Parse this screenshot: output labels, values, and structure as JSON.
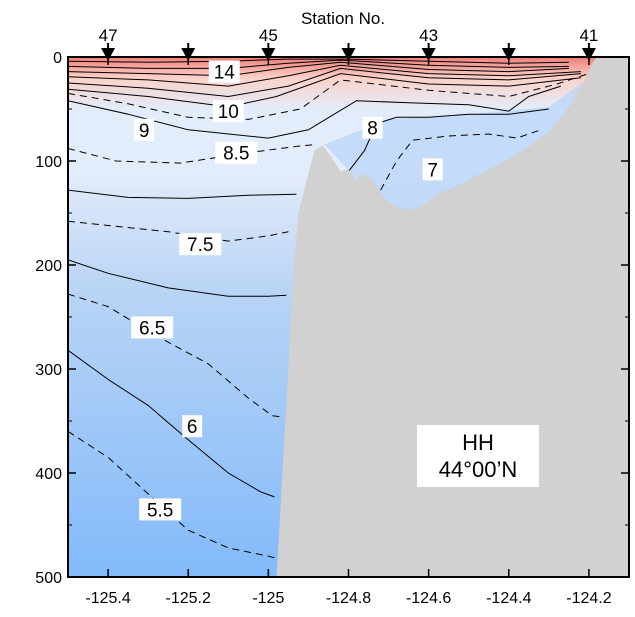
{
  "chart_data": {
    "type": "contour-section",
    "top_axis_title": "Station No.",
    "station_labels": [
      {
        "name": "47",
        "lon": -125.4
      },
      {
        "name": "45",
        "lon": -125.0
      },
      {
        "name": "43",
        "lon": -124.6
      },
      {
        "name": "41",
        "lon": -124.2
      }
    ],
    "station_markers_lon": [
      -125.4,
      -125.2,
      -125.0,
      -124.8,
      -124.6,
      -124.4,
      -124.2
    ],
    "x_ticks": [
      -125.4,
      -125.2,
      -125.0,
      -124.8,
      -124.6,
      -124.4,
      -124.2
    ],
    "x_tick_labels": [
      "-125.4",
      "-125.2",
      "-125",
      "-124.8",
      "-124.6",
      "-124.4",
      "-124.2"
    ],
    "y_ticks": [
      0,
      100,
      200,
      300,
      400,
      500
    ],
    "y_tick_labels": [
      "0",
      "100",
      "200",
      "300",
      "400",
      "500"
    ],
    "xlim": [
      -125.5,
      -124.1
    ],
    "ylim": [
      0,
      500
    ],
    "y_inverted": true,
    "annotation_lines": [
      "HH",
      "44°00’N"
    ],
    "contour_labels": [
      {
        "text": "14",
        "lon": -125.11,
        "depth": 14
      },
      {
        "text": "10",
        "lon": -125.1,
        "depth": 52
      },
      {
        "text": "9",
        "lon": -125.31,
        "depth": 70
      },
      {
        "text": "8.5",
        "lon": -125.08,
        "depth": 92
      },
      {
        "text": "8",
        "lon": -124.74,
        "depth": 68
      },
      {
        "text": "7",
        "lon": -124.59,
        "depth": 108
      },
      {
        "text": "7.5",
        "lon": -125.17,
        "depth": 180
      },
      {
        "text": "6.5",
        "lon": -125.29,
        "depth": 260
      },
      {
        "text": "6",
        "lon": -125.19,
        "depth": 355
      },
      {
        "text": "5.5",
        "lon": -125.27,
        "depth": 435
      }
    ],
    "bathymetry": [
      [
        -124.98,
        500
      ],
      [
        -124.975,
        470
      ],
      [
        -124.965,
        400
      ],
      [
        -124.95,
        300
      ],
      [
        -124.94,
        220
      ],
      [
        -124.925,
        150
      ],
      [
        -124.905,
        120
      ],
      [
        -124.885,
        90
      ],
      [
        -124.865,
        85
      ],
      [
        -124.845,
        95
      ],
      [
        -124.82,
        110
      ],
      [
        -124.8,
        108
      ],
      [
        -124.78,
        118
      ],
      [
        -124.76,
        112
      ],
      [
        -124.74,
        118
      ],
      [
        -124.72,
        130
      ],
      [
        -124.7,
        140
      ],
      [
        -124.67,
        146
      ],
      [
        -124.64,
        147
      ],
      [
        -124.61,
        142
      ],
      [
        -124.58,
        132
      ],
      [
        -124.54,
        126
      ],
      [
        -124.5,
        118
      ],
      [
        -124.45,
        108
      ],
      [
        -124.4,
        98
      ],
      [
        -124.35,
        86
      ],
      [
        -124.3,
        72
      ],
      [
        -124.25,
        48
      ],
      [
        -124.21,
        22
      ],
      [
        -124.19,
        5
      ],
      [
        -124.18,
        0
      ],
      [
        -124.1,
        0
      ],
      [
        -124.1,
        500
      ]
    ],
    "isotherms": [
      {
        "level": 13,
        "style": "solid",
        "points": [
          [
            -125.5,
            4
          ],
          [
            -125.3,
            5
          ],
          [
            -125.1,
            4
          ],
          [
            -124.95,
            2
          ],
          [
            -124.8,
            2
          ],
          [
            -124.6,
            4
          ],
          [
            -124.4,
            6
          ],
          [
            -124.25,
            5
          ]
        ]
      },
      {
        "level": 12,
        "style": "solid",
        "points": [
          [
            -125.5,
            9
          ],
          [
            -125.3,
            11
          ],
          [
            -125.1,
            11
          ],
          [
            -124.95,
            6
          ],
          [
            -124.82,
            3
          ],
          [
            -124.6,
            8
          ],
          [
            -124.4,
            10
          ],
          [
            -124.25,
            9
          ]
        ]
      },
      {
        "level": 11.5,
        "style": "solid",
        "points": [
          [
            -125.5,
            14
          ],
          [
            -125.3,
            16
          ],
          [
            -125.1,
            18
          ],
          [
            -124.95,
            10
          ],
          [
            -124.82,
            5
          ],
          [
            -124.6,
            12
          ],
          [
            -124.4,
            14
          ],
          [
            -124.25,
            11
          ]
        ]
      },
      {
        "level": 11,
        "style": "solid",
        "points": [
          [
            -125.5,
            19
          ],
          [
            -125.3,
            22
          ],
          [
            -125.1,
            28
          ],
          [
            -124.95,
            18
          ],
          [
            -124.82,
            8
          ],
          [
            -124.6,
            16
          ],
          [
            -124.4,
            18
          ],
          [
            -124.22,
            14
          ]
        ]
      },
      {
        "level": 10.5,
        "style": "solid",
        "points": [
          [
            -125.5,
            25
          ],
          [
            -125.3,
            30
          ],
          [
            -125.1,
            38
          ],
          [
            -124.95,
            28
          ],
          [
            -124.82,
            11
          ],
          [
            -124.6,
            20
          ],
          [
            -124.4,
            22
          ],
          [
            -124.22,
            16
          ]
        ]
      },
      {
        "level": 10,
        "style": "solid",
        "points": [
          [
            -125.5,
            31
          ],
          [
            -125.3,
            38
          ],
          [
            -125.1,
            48
          ],
          [
            -124.98,
            38
          ],
          [
            -124.82,
            16
          ],
          [
            -124.6,
            26
          ],
          [
            -124.4,
            28
          ],
          [
            -124.22,
            20
          ]
        ]
      },
      {
        "level": 9.5,
        "style": "dashed",
        "points": [
          [
            -125.5,
            35
          ],
          [
            -125.35,
            45
          ],
          [
            -125.2,
            58
          ],
          [
            -125.05,
            60
          ],
          [
            -124.92,
            50
          ],
          [
            -124.82,
            22
          ],
          [
            -124.6,
            32
          ],
          [
            -124.4,
            38
          ],
          [
            -124.28,
            26
          ],
          [
            -124.2,
            16
          ]
        ]
      },
      {
        "level": 9,
        "style": "solid",
        "points": [
          [
            -125.5,
            42
          ],
          [
            -125.35,
            55
          ],
          [
            -125.2,
            70
          ],
          [
            -125.0,
            78
          ],
          [
            -124.9,
            70
          ],
          [
            -124.84,
            56
          ],
          [
            -124.78,
            42
          ],
          [
            -124.65,
            44
          ],
          [
            -124.5,
            46
          ],
          [
            -124.4,
            52
          ],
          [
            -124.35,
            38
          ],
          [
            -124.27,
            28
          ]
        ]
      },
      {
        "level": 8.5,
        "style": "dashed",
        "points": [
          [
            -125.5,
            88
          ],
          [
            -125.38,
            100
          ],
          [
            -125.22,
            102
          ],
          [
            -125.05,
            92
          ],
          [
            -124.93,
            86
          ],
          [
            -124.88,
            84
          ]
        ]
      },
      {
        "level": 8,
        "style": "solid",
        "points": [
          [
            -124.8,
            110
          ],
          [
            -124.76,
            90
          ],
          [
            -124.73,
            64
          ],
          [
            -124.68,
            58
          ],
          [
            -124.6,
            58
          ],
          [
            -124.5,
            55
          ],
          [
            -124.4,
            55
          ],
          [
            -124.3,
            50
          ]
        ]
      },
      {
        "level": 7.5,
        "style": "dashed",
        "points": [
          [
            -124.72,
            128
          ],
          [
            -124.68,
            100
          ],
          [
            -124.64,
            80
          ],
          [
            -124.55,
            76
          ],
          [
            -124.45,
            74
          ],
          [
            -124.38,
            78
          ],
          [
            -124.32,
            70
          ]
        ]
      },
      {
        "level": 8,
        "style": "solid",
        "points": [
          [
            -125.5,
            128
          ],
          [
            -125.35,
            135
          ],
          [
            -125.2,
            136
          ],
          [
            -125.05,
            133
          ],
          [
            -124.93,
            132
          ]
        ]
      },
      {
        "level": 7.5,
        "style": "dashed",
        "points": [
          [
            -125.5,
            158
          ],
          [
            -125.4,
            162
          ],
          [
            -125.25,
            168
          ],
          [
            -125.1,
            177
          ],
          [
            -125.0,
            172
          ],
          [
            -124.95,
            168
          ]
        ]
      },
      {
        "level": 7,
        "style": "solid",
        "points": [
          [
            -125.5,
            195
          ],
          [
            -125.4,
            208
          ],
          [
            -125.25,
            222
          ],
          [
            -125.1,
            230
          ],
          [
            -125.0,
            230
          ],
          [
            -124.955,
            229
          ]
        ]
      },
      {
        "level": 6.5,
        "style": "dashed",
        "points": [
          [
            -125.5,
            228
          ],
          [
            -125.4,
            240
          ],
          [
            -125.28,
            268
          ],
          [
            -125.15,
            295
          ],
          [
            -125.05,
            328
          ],
          [
            -124.99,
            345
          ],
          [
            -124.97,
            346
          ]
        ]
      },
      {
        "level": 6,
        "style": "solid",
        "points": [
          [
            -125.5,
            282
          ],
          [
            -125.4,
            310
          ],
          [
            -125.3,
            335
          ],
          [
            -125.2,
            368
          ],
          [
            -125.1,
            400
          ],
          [
            -125.02,
            418
          ],
          [
            -124.985,
            423
          ]
        ]
      },
      {
        "level": 5.5,
        "style": "dashed",
        "points": [
          [
            -125.5,
            360
          ],
          [
            -125.4,
            385
          ],
          [
            -125.3,
            420
          ],
          [
            -125.2,
            455
          ],
          [
            -125.1,
            472
          ],
          [
            -125.0,
            480
          ],
          [
            -124.98,
            482
          ]
        ]
      }
    ],
    "colors": {
      "surface_warm": "#ef7f79",
      "warm_mid": "#fbd1c8",
      "cool_light": "#e3ecfb",
      "cool_mid": "#b9d4f5",
      "cool_deep": "#82bafa",
      "shelf_water": "#b7d4f8",
      "bathymetry_fill": "#d1d1d1"
    }
  }
}
